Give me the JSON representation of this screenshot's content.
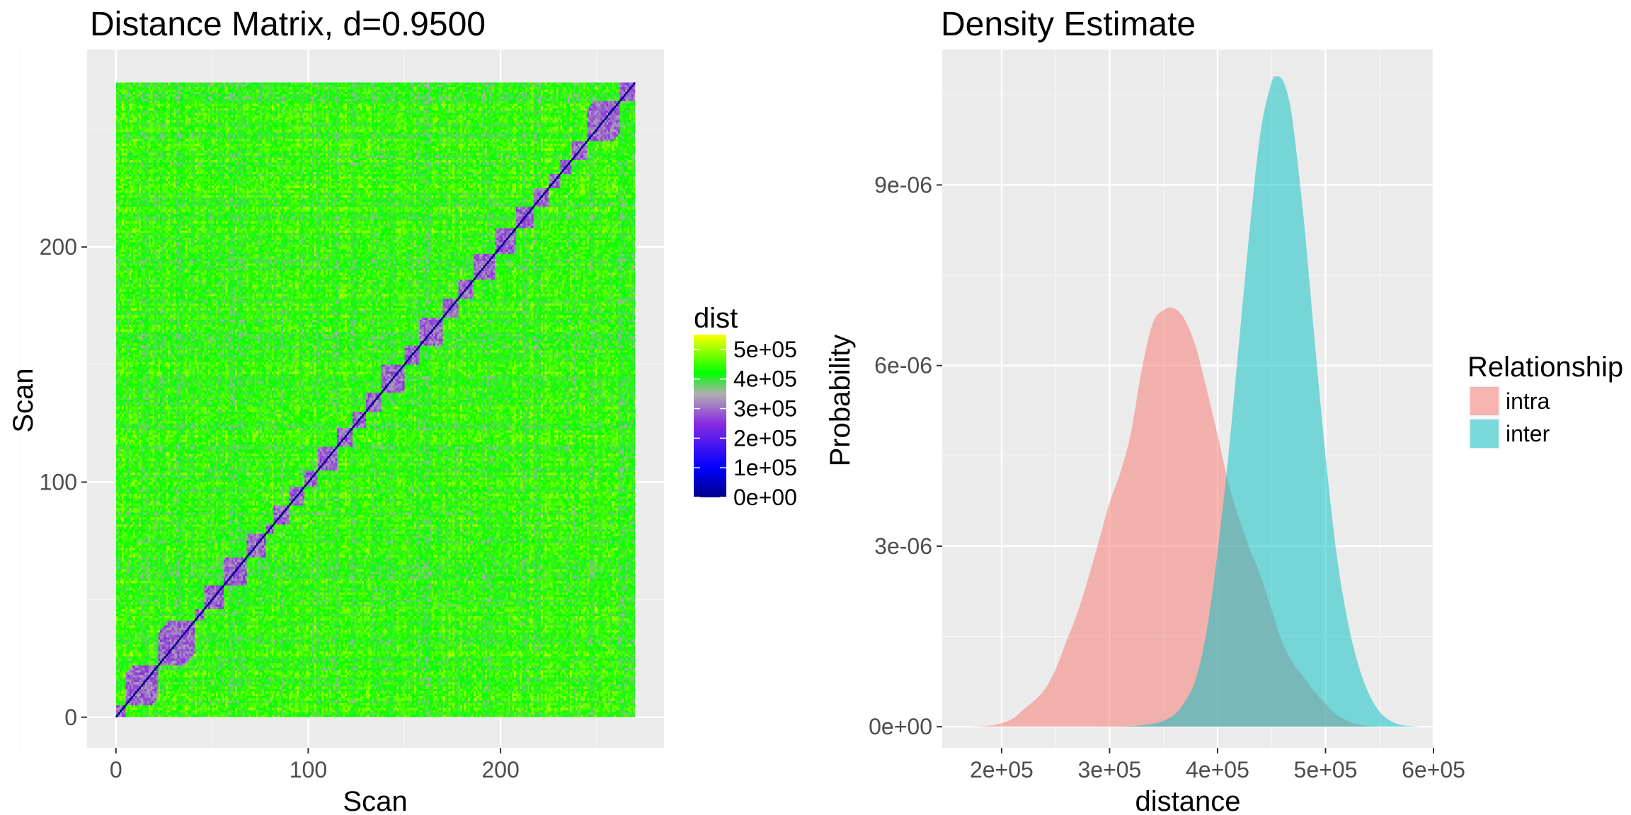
{
  "chart_data": [
    {
      "type": "heatmap",
      "title": "Distance Matrix, d=0.9500",
      "xlabel": "Scan",
      "ylabel": "Scan",
      "xlim": [
        -15,
        285
      ],
      "ylim": [
        -13,
        284
      ],
      "n": 270,
      "x_ticks": [
        0,
        100,
        200
      ],
      "x_tick_labels": [
        "0",
        "100",
        "200"
      ],
      "y_ticks": [
        0,
        100,
        200
      ],
      "y_tick_labels": [
        "0",
        "100",
        "200"
      ],
      "block_boundaries": [
        0,
        5,
        22,
        41,
        46,
        56,
        68,
        78,
        82,
        90,
        98,
        105,
        115,
        123,
        130,
        138,
        150,
        158,
        170,
        178,
        186,
        197,
        208,
        217,
        225,
        231,
        237,
        245,
        262,
        270
      ],
      "color_scale": {
        "name": "dist",
        "stops": [
          {
            "value": 0,
            "color": "#00008b"
          },
          {
            "value": 100000,
            "color": "#0000ff"
          },
          {
            "value": 250000,
            "color": "#8a2be2"
          },
          {
            "value": 350000,
            "color": "#b0b0b0"
          },
          {
            "value": 420000,
            "color": "#00ff00"
          },
          {
            "value": 550000,
            "color": "#ffff00"
          }
        ],
        "breaks": [
          0,
          100000,
          200000,
          300000,
          400000,
          500000
        ],
        "break_labels": [
          "0e+00",
          "1e+05",
          "2e+05",
          "3e+05",
          "4e+05",
          "5e+05"
        ],
        "limits": [
          0,
          550000
        ]
      }
    },
    {
      "type": "area",
      "title": "Density Estimate",
      "xlabel": "distance",
      "ylabel": "Probability",
      "xlim": [
        145000,
        600000
      ],
      "ylim": [
        -3.5e-07,
        1.125e-05
      ],
      "x_ticks": [
        200000,
        300000,
        400000,
        500000,
        600000
      ],
      "x_tick_labels": [
        "2e+05",
        "3e+05",
        "4e+05",
        "5e+05",
        "6e+05"
      ],
      "y_ticks": [
        0,
        3e-06,
        6e-06,
        9e-06
      ],
      "y_tick_labels": [
        "0e+00",
        "3e-06",
        "6e-06",
        "9e-06"
      ],
      "legend": {
        "title": "Relationship",
        "position": "right"
      },
      "series": [
        {
          "name": "intra",
          "color": "#f8766d",
          "x": [
            170000,
            190000,
            200000,
            210000,
            220000,
            230000,
            240000,
            250000,
            260000,
            270000,
            280000,
            290000,
            300000,
            310000,
            320000,
            330000,
            340000,
            350000,
            360000,
            370000,
            380000,
            390000,
            400000,
            410000,
            420000,
            430000,
            440000,
            450000,
            460000,
            470000,
            480000,
            490000,
            500000,
            510000,
            520000,
            530000,
            540000,
            550000
          ],
          "y": [
            0,
            2e-08,
            6e-08,
            1.3e-07,
            2.8e-07,
            4.3e-07,
            6.2e-07,
            9.5e-07,
            1.42e-06,
            1.88e-06,
            2.45e-06,
            3.08e-06,
            3.72e-06,
            4.22e-06,
            4.9e-06,
            5.95e-06,
            6.7e-06,
            6.92e-06,
            6.95e-06,
            6.75e-06,
            6.3e-06,
            5.6e-06,
            4.85e-06,
            4.05e-06,
            3.45e-06,
            2.95e-06,
            2.5e-06,
            1.95e-06,
            1.4e-06,
            1.05e-06,
            8.2e-07,
            5.8e-07,
            3.8e-07,
            2e-07,
            1e-07,
            4e-08,
            1e-08,
            0
          ]
        },
        {
          "name": "inter",
          "color": "#00bfc4",
          "x": [
            290000,
            320000,
            340000,
            350000,
            360000,
            370000,
            380000,
            390000,
            400000,
            410000,
            420000,
            430000,
            440000,
            450000,
            455000,
            460000,
            465000,
            470000,
            480000,
            490000,
            500000,
            510000,
            520000,
            530000,
            540000,
            550000,
            560000,
            570000,
            580000,
            590000
          ],
          "y": [
            0,
            1e-08,
            5e-08,
            1e-07,
            2e-07,
            4.2e-07,
            8e-07,
            1.6e-06,
            2.9e-06,
            4.5e-06,
            6.4e-06,
            8.3e-06,
            9.9e-06,
            1.07e-05,
            1.08e-05,
            1.075e-05,
            1.05e-05,
            1e-05,
            8.4e-06,
            6.4e-06,
            4.5e-06,
            2.9e-06,
            1.8e-06,
            1.05e-06,
            5.5e-07,
            2.5e-07,
            1e-07,
            3e-08,
            1e-08,
            0
          ]
        }
      ]
    }
  ]
}
